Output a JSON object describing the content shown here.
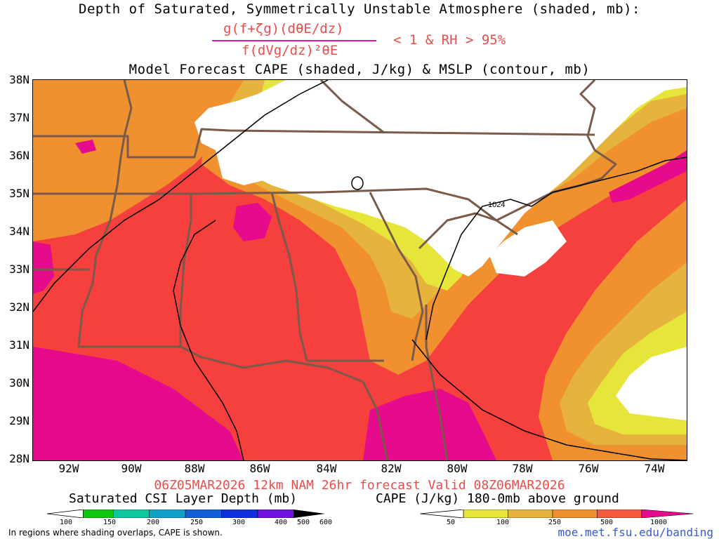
{
  "title": {
    "line1": "Depth of Saturated, Symmetrically Unstable Atmosphere (shaded, mb):",
    "numerator": "g(f+ζg)(dθE/dz)",
    "denominator": "f(dVg/dz)²θE",
    "condition": "< 1 & RH > 95%",
    "line3": "Model Forecast CAPE (shaded, J/kg) & MSLP (contour, mb)"
  },
  "map": {
    "lat_labels": [
      "38N",
      "37N",
      "36N",
      "35N",
      "34N",
      "33N",
      "32N",
      "31N",
      "30N",
      "29N",
      "28N"
    ],
    "lon_labels": [
      "92W",
      "90W",
      "88W",
      "86W",
      "84W",
      "82W",
      "80W",
      "78W",
      "76W",
      "74W"
    ],
    "isobar_label": "1024",
    "colors": {
      "white": "#ffffff",
      "yellow": "#e6e63a",
      "gold": "#e6b43c",
      "orange": "#f0902e",
      "red_orange": "#f45a3c",
      "red": "#f5403d",
      "magenta": "#e60a8c",
      "border": "#7a5a48",
      "contour": "#000000"
    }
  },
  "valid_line": "06Z05MAR2026 12km NAM 26hr forecast Valid 08Z06MAR2026",
  "colorbar_left": {
    "title": "Saturated CSI Layer Depth (mb)",
    "ticks": [
      "100",
      "150",
      "200",
      "250",
      "300",
      "400",
      "500",
      "600"
    ],
    "colors": [
      "#ffffff",
      "#10c810",
      "#10c8a0",
      "#10a0c8",
      "#1060d8",
      "#1030e0",
      "#7010e0",
      "#000000"
    ]
  },
  "colorbar_right": {
    "title": "CAPE (J/kg) 180-0mb above ground",
    "ticks": [
      "50",
      "100",
      "250",
      "500",
      "1000"
    ],
    "colors": [
      "#ffffff",
      "#e6e63a",
      "#e6b43c",
      "#f0902e",
      "#f45a3c",
      "#e60a8c"
    ]
  },
  "footnote": "In regions where shading overlaps, CAPE is shown.",
  "credit": "moe.met.fsu.edu/banding"
}
